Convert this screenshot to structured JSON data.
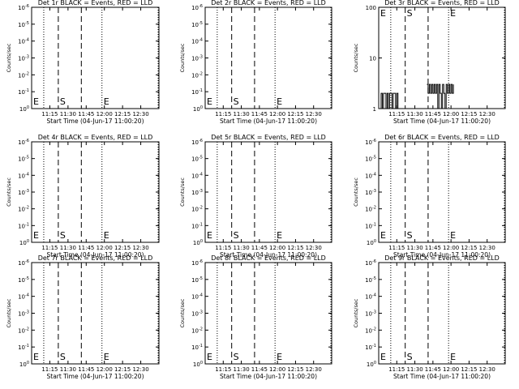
{
  "chart_data": [
    {
      "title": "Det 1r BLACK = Events, RED = LLD",
      "ylabel": "Counts/sec",
      "xlabel": "Start Time (04-Jun-17 11:00:20)",
      "x_ticks": [
        "11:15",
        "11:30",
        "11:45",
        "12:00",
        "12:15",
        "12:30"
      ],
      "y_scale": "log",
      "y_ticks": [
        {
          "base": "10",
          "exp": "0"
        },
        {
          "base": "10",
          "exp": "-1"
        },
        {
          "base": "10",
          "exp": "-2"
        },
        {
          "base": "10",
          "exp": "-3"
        },
        {
          "base": "10",
          "exp": "-4"
        },
        {
          "base": "10",
          "exp": "-5"
        },
        {
          "base": "10",
          "exp": "-6"
        }
      ],
      "ylim": [
        1e-06,
        1
      ],
      "xlim": [
        "11:00",
        "12:45"
      ],
      "dotted_lines": [
        "11:10",
        "11:58",
        "12:48"
      ],
      "dashed_lines": [
        "11:22",
        "11:41"
      ],
      "markers": [
        {
          "text": "E",
          "x": "11:00"
        },
        {
          "text": "S",
          "x": "11:22"
        },
        {
          "text": "E",
          "x": "11:58"
        }
      ],
      "series": []
    },
    {
      "title": "Det 2r BLACK = Events, RED = LLD",
      "ylabel": "Counts/sec",
      "xlabel": "Start Time (04-Jun-17 11:00:20)",
      "x_ticks": [
        "11:15",
        "11:30",
        "11:45",
        "12:00",
        "12:15",
        "12:30"
      ],
      "y_scale": "log",
      "y_ticks": [
        {
          "base": "10",
          "exp": "0"
        },
        {
          "base": "10",
          "exp": "-1"
        },
        {
          "base": "10",
          "exp": "-2"
        },
        {
          "base": "10",
          "exp": "-3"
        },
        {
          "base": "10",
          "exp": "-4"
        },
        {
          "base": "10",
          "exp": "-5"
        },
        {
          "base": "10",
          "exp": "-6"
        }
      ],
      "ylim": [
        1e-06,
        1
      ],
      "xlim": [
        "11:00",
        "12:45"
      ],
      "dotted_lines": [
        "11:10",
        "11:58",
        "12:48"
      ],
      "dashed_lines": [
        "11:22",
        "11:41"
      ],
      "markers": [
        {
          "text": "E",
          "x": "11:00"
        },
        {
          "text": "S",
          "x": "11:22"
        },
        {
          "text": "E",
          "x": "11:58"
        }
      ],
      "series": []
    },
    {
      "title": "Det 3r BLACK = Events, RED = LLD",
      "ylabel": "Counts/sec",
      "xlabel": "Start Time (04-Jun-17 11:00:20)",
      "x_ticks": [
        "11:15",
        "11:30",
        "11:45",
        "12:00",
        "12:15",
        "12:30"
      ],
      "y_scale": "log",
      "y_ticks": [
        {
          "base": "1",
          "exp": ""
        },
        {
          "base": "10",
          "exp": ""
        },
        {
          "base": "100",
          "exp": ""
        }
      ],
      "ylim": [
        1,
        100
      ],
      "xlim": [
        "11:00",
        "12:45"
      ],
      "dotted_lines": [
        "11:10",
        "11:58",
        "12:48"
      ],
      "dashed_lines": [
        "11:22",
        "11:41"
      ],
      "markers": [
        {
          "text": "E",
          "x": "11:00"
        },
        {
          "text": "S",
          "x": "11:22"
        },
        {
          "text": "E",
          "x": "11:58"
        }
      ],
      "series": [
        {
          "color": "#000000",
          "x": [
            "11:01",
            "11:02",
            "11:03",
            "11:04",
            "11:05",
            "11:06",
            "11:07",
            "11:08",
            "11:09",
            "11:10",
            "11:11",
            "11:12",
            "11:13",
            "11:14",
            "11:15",
            "11:16",
            "11:40",
            "11:41",
            "11:42",
            "11:43",
            "11:44",
            "11:45",
            "11:46",
            "11:47",
            "11:48",
            "11:49",
            "11:50",
            "11:51",
            "11:52",
            "11:53",
            "11:54",
            "11:55",
            "11:56",
            "11:57",
            "11:58",
            "11:59",
            "12:00",
            "12:01",
            "12:02"
          ],
          "values": [
            1,
            2,
            1,
            2,
            2,
            1,
            2,
            1,
            2,
            2,
            1,
            2,
            2,
            1,
            2,
            1,
            3,
            2,
            3,
            2,
            3,
            2,
            3,
            2,
            3,
            1,
            3,
            2,
            1,
            3,
            2,
            1,
            3,
            2,
            3,
            2,
            3,
            2,
            3
          ]
        }
      ]
    },
    {
      "title": "Det 4r BLACK = Events, RED = LLD",
      "ylabel": "Counts/sec",
      "xlabel": "Start Time (04-Jun-17 11:00:20)",
      "x_ticks": [
        "11:15",
        "11:30",
        "11:45",
        "12:00",
        "12:15",
        "12:30"
      ],
      "y_scale": "log",
      "y_ticks": [
        {
          "base": "10",
          "exp": "0"
        },
        {
          "base": "10",
          "exp": "-1"
        },
        {
          "base": "10",
          "exp": "-2"
        },
        {
          "base": "10",
          "exp": "-3"
        },
        {
          "base": "10",
          "exp": "-4"
        },
        {
          "base": "10",
          "exp": "-5"
        },
        {
          "base": "10",
          "exp": "-6"
        }
      ],
      "ylim": [
        1e-06,
        1
      ],
      "xlim": [
        "11:00",
        "12:45"
      ],
      "dotted_lines": [
        "11:10",
        "11:58",
        "12:48"
      ],
      "dashed_lines": [
        "11:22",
        "11:41"
      ],
      "markers": [
        {
          "text": "E",
          "x": "11:00"
        },
        {
          "text": "S",
          "x": "11:22"
        },
        {
          "text": "E",
          "x": "11:58"
        }
      ],
      "series": []
    },
    {
      "title": "Det 5r BLACK = Events, RED = LLD",
      "ylabel": "Counts/sec",
      "xlabel": "Start Time (04-Jun-17 11:00:20)",
      "x_ticks": [
        "11:15",
        "11:30",
        "11:45",
        "12:00",
        "12:15",
        "12:30"
      ],
      "y_scale": "log",
      "y_ticks": [
        {
          "base": "10",
          "exp": "0"
        },
        {
          "base": "10",
          "exp": "-1"
        },
        {
          "base": "10",
          "exp": "-2"
        },
        {
          "base": "10",
          "exp": "-3"
        },
        {
          "base": "10",
          "exp": "-4"
        },
        {
          "base": "10",
          "exp": "-5"
        },
        {
          "base": "10",
          "exp": "-6"
        }
      ],
      "ylim": [
        1e-06,
        1
      ],
      "xlim": [
        "11:00",
        "12:45"
      ],
      "dotted_lines": [
        "11:10",
        "11:58",
        "12:48"
      ],
      "dashed_lines": [
        "11:22",
        "11:41"
      ],
      "markers": [
        {
          "text": "E",
          "x": "11:00"
        },
        {
          "text": "S",
          "x": "11:22"
        },
        {
          "text": "E",
          "x": "11:58"
        }
      ],
      "series": []
    },
    {
      "title": "Det 6r BLACK = Events, RED = LLD",
      "ylabel": "Counts/sec",
      "xlabel": "Start Time (04-Jun-17 11:00:20)",
      "x_ticks": [
        "11:15",
        "11:30",
        "11:45",
        "12:00",
        "12:15",
        "12:30"
      ],
      "y_scale": "log",
      "y_ticks": [
        {
          "base": "10",
          "exp": "0"
        },
        {
          "base": "10",
          "exp": "-1"
        },
        {
          "base": "10",
          "exp": "-2"
        },
        {
          "base": "10",
          "exp": "-3"
        },
        {
          "base": "10",
          "exp": "-4"
        },
        {
          "base": "10",
          "exp": "-5"
        },
        {
          "base": "10",
          "exp": "-6"
        }
      ],
      "ylim": [
        1e-06,
        1
      ],
      "xlim": [
        "11:00",
        "12:45"
      ],
      "dotted_lines": [
        "11:10",
        "11:58",
        "12:48"
      ],
      "dashed_lines": [
        "11:22",
        "11:41"
      ],
      "markers": [
        {
          "text": "E",
          "x": "11:00"
        },
        {
          "text": "S",
          "x": "11:22"
        },
        {
          "text": "E",
          "x": "11:58"
        }
      ],
      "series": []
    },
    {
      "title": "Det 7r BLACK = Events, RED = LLD",
      "ylabel": "Counts/sec",
      "xlabel": "Start Time (04-Jun-17 11:00:20)",
      "x_ticks": [
        "11:15",
        "11:30",
        "11:45",
        "12:00",
        "12:15",
        "12:30"
      ],
      "y_scale": "log",
      "y_ticks": [
        {
          "base": "10",
          "exp": "0"
        },
        {
          "base": "10",
          "exp": "-1"
        },
        {
          "base": "10",
          "exp": "-2"
        },
        {
          "base": "10",
          "exp": "-3"
        },
        {
          "base": "10",
          "exp": "-4"
        },
        {
          "base": "10",
          "exp": "-5"
        },
        {
          "base": "10",
          "exp": "-6"
        }
      ],
      "ylim": [
        1e-06,
        1
      ],
      "xlim": [
        "11:00",
        "12:45"
      ],
      "dotted_lines": [
        "11:10",
        "11:58",
        "12:48"
      ],
      "dashed_lines": [
        "11:22",
        "11:41"
      ],
      "markers": [
        {
          "text": "E",
          "x": "11:00"
        },
        {
          "text": "S",
          "x": "11:22"
        },
        {
          "text": "E",
          "x": "11:58"
        }
      ],
      "series": []
    },
    {
      "title": "Det 8r BLACK = Events, RED = LLD",
      "ylabel": "Counts/sec",
      "xlabel": "Start Time (04-Jun-17 11:00:20)",
      "x_ticks": [
        "11:15",
        "11:30",
        "11:45",
        "12:00",
        "12:15",
        "12:30"
      ],
      "y_scale": "log",
      "y_ticks": [
        {
          "base": "10",
          "exp": "0"
        },
        {
          "base": "10",
          "exp": "-1"
        },
        {
          "base": "10",
          "exp": "-2"
        },
        {
          "base": "10",
          "exp": "-3"
        },
        {
          "base": "10",
          "exp": "-4"
        },
        {
          "base": "10",
          "exp": "-5"
        },
        {
          "base": "10",
          "exp": "-6"
        }
      ],
      "ylim": [
        1e-06,
        1
      ],
      "xlim": [
        "11:00",
        "12:45"
      ],
      "dotted_lines": [
        "11:10",
        "11:58",
        "12:48"
      ],
      "dashed_lines": [
        "11:22",
        "11:41"
      ],
      "markers": [
        {
          "text": "E",
          "x": "11:00"
        },
        {
          "text": "S",
          "x": "11:22"
        },
        {
          "text": "E",
          "x": "11:58"
        }
      ],
      "series": []
    },
    {
      "title": "Det 9r BLACK = Events, RED = LLD",
      "ylabel": "Counts/sec",
      "xlabel": "Start Time (04-Jun-17 11:00:20)",
      "x_ticks": [
        "11:15",
        "11:30",
        "11:45",
        "12:00",
        "12:15",
        "12:30"
      ],
      "y_scale": "log",
      "y_ticks": [
        {
          "base": "10",
          "exp": "0"
        },
        {
          "base": "10",
          "exp": "-1"
        },
        {
          "base": "10",
          "exp": "-2"
        },
        {
          "base": "10",
          "exp": "-3"
        },
        {
          "base": "10",
          "exp": "-4"
        },
        {
          "base": "10",
          "exp": "-5"
        },
        {
          "base": "10",
          "exp": "-6"
        }
      ],
      "ylim": [
        1e-06,
        1
      ],
      "xlim": [
        "11:00",
        "12:45"
      ],
      "dotted_lines": [
        "11:10",
        "11:58",
        "12:48"
      ],
      "dashed_lines": [
        "11:22",
        "11:41"
      ],
      "markers": [
        {
          "text": "E",
          "x": "11:00"
        },
        {
          "text": "S",
          "x": "11:22"
        },
        {
          "text": "E",
          "x": "11:58"
        }
      ],
      "series": []
    }
  ]
}
